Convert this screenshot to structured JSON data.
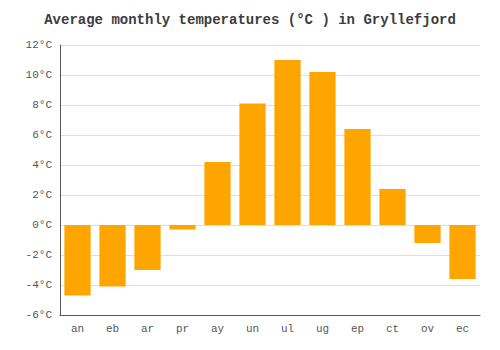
{
  "chart_data": {
    "type": "bar",
    "title": "Average monthly temperatures (°C ) in Gryllefjord",
    "categories": [
      "an",
      "eb",
      "ar",
      "pr",
      "ay",
      "un",
      "ul",
      "ug",
      "ep",
      "ct",
      "ov",
      "ec"
    ],
    "values": [
      -4.7,
      -4.1,
      -3.0,
      -0.3,
      4.2,
      8.1,
      11.0,
      10.2,
      6.4,
      2.4,
      -1.2,
      -3.6
    ],
    "color": "#FFA500",
    "ylim": [
      -6,
      12
    ],
    "yticks": [
      {
        "value": -6,
        "label": "-6°C"
      },
      {
        "value": -4,
        "label": "-4°C"
      },
      {
        "value": -2,
        "label": "-2°C"
      },
      {
        "value": 0,
        "label": "0°C"
      },
      {
        "value": 2,
        "label": "2°C"
      },
      {
        "value": 4,
        "label": "4°C"
      },
      {
        "value": 6,
        "label": "6°C"
      },
      {
        "value": 8,
        "label": "8°C"
      },
      {
        "value": 10,
        "label": "10°C"
      },
      {
        "value": 12,
        "label": "12°C"
      }
    ],
    "grid": true
  }
}
